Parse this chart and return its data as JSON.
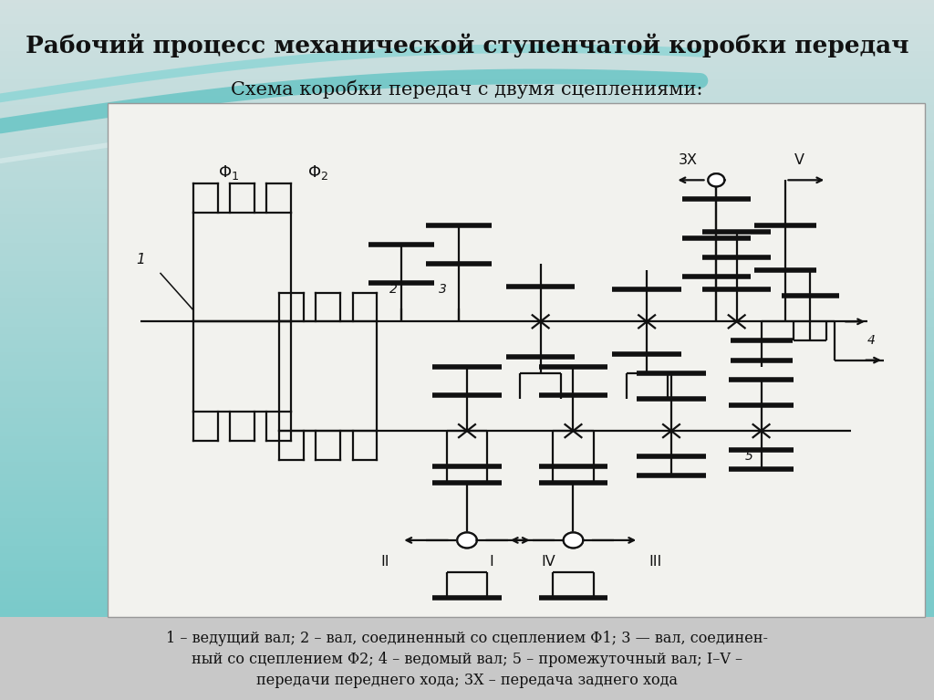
{
  "title1": "Рабочий процесс механической ступенчатой коробки передач",
  "title2": "Схема коробки передач с двумя сцеплениями:",
  "caption_line1": "1 – ведущий вал; 2 – вал, соединенный со сцеплением Φ1; 3 — вал, соединен-",
  "caption_line2": "ный со сцеплением Φ2; 4 – ведомый вал; 5 – промежуточный вал; I–V –",
  "caption_line3": "передачи переднего хода; 3Х – передача заднего хода",
  "bg_top_color": "#6ec6c6",
  "bg_bottom_color": "#c8dada",
  "diagram_bg": "#f2f2ee",
  "line_color": "#111111",
  "caption_bg": "#c8c8c8"
}
